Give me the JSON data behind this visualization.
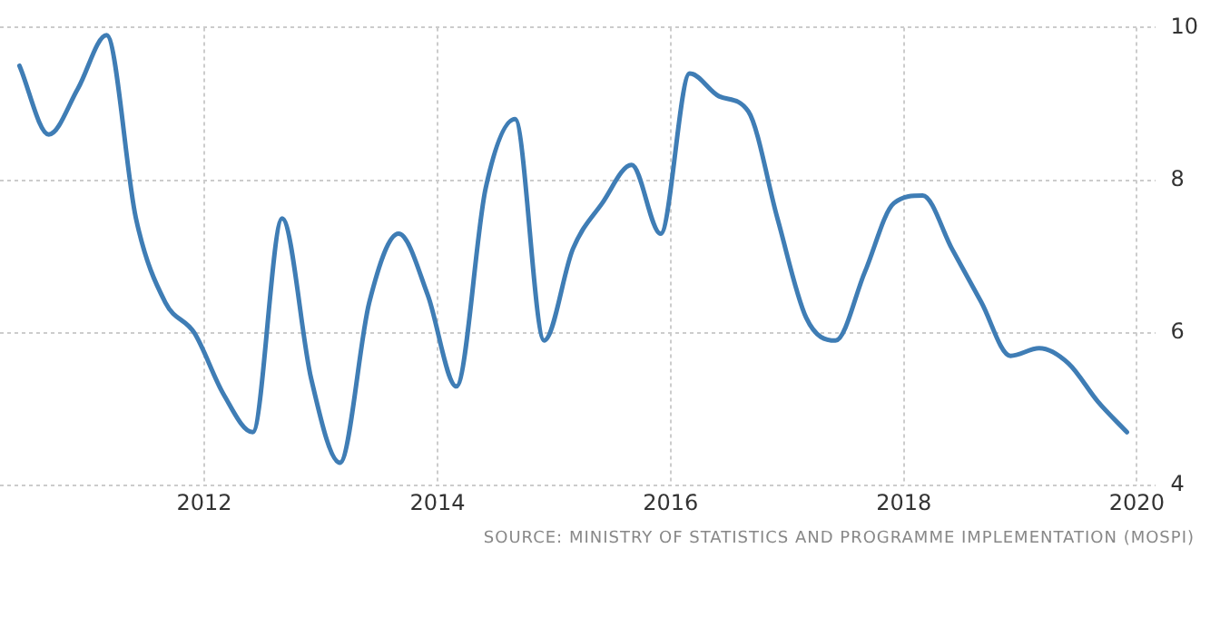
{
  "chart_data": {
    "type": "line",
    "x": [
      "2010-06",
      "2010-09",
      "2010-12",
      "2011-03",
      "2011-06",
      "2011-09",
      "2011-12",
      "2012-03",
      "2012-06",
      "2012-09",
      "2012-12",
      "2013-03",
      "2013-06",
      "2013-09",
      "2013-12",
      "2014-03",
      "2014-06",
      "2014-09",
      "2014-12",
      "2015-03",
      "2015-06",
      "2015-09",
      "2015-12",
      "2016-03",
      "2016-06",
      "2016-09",
      "2016-12",
      "2017-03",
      "2017-06",
      "2017-09",
      "2017-12",
      "2018-03",
      "2018-06",
      "2018-09",
      "2018-12",
      "2019-03",
      "2019-06",
      "2019-09",
      "2019-12"
    ],
    "series": [
      {
        "color": "#3f7db5",
        "values": [
          9.5,
          8.6,
          9.2,
          9.9,
          7.5,
          6.4,
          6.0,
          5.2,
          4.7,
          7.5,
          5.4,
          4.3,
          6.4,
          7.3,
          6.5,
          5.3,
          7.9,
          8.8,
          5.9,
          7.1,
          7.7,
          8.2,
          7.3,
          9.4,
          9.1,
          8.9,
          7.5,
          6.2,
          5.9,
          6.8,
          7.7,
          7.8,
          7.1,
          6.4,
          5.7,
          5.8,
          5.6,
          5.1,
          4.7
        ]
      }
    ],
    "xlim": [
      "2010-04",
      "2020-03"
    ],
    "xticks": [
      "2012",
      "2014",
      "2016",
      "2018",
      "2020"
    ],
    "ylim": [
      4,
      10
    ],
    "yticks": [
      4,
      6,
      8,
      10
    ],
    "grid": true,
    "legend": false,
    "marker": "none",
    "line_style": "solid",
    "annotations": [
      "SOURCE: MINISTRY OF STATISTICS AND PROGRAMME IMPLEMENTATION (MOSPI)"
    ]
  }
}
